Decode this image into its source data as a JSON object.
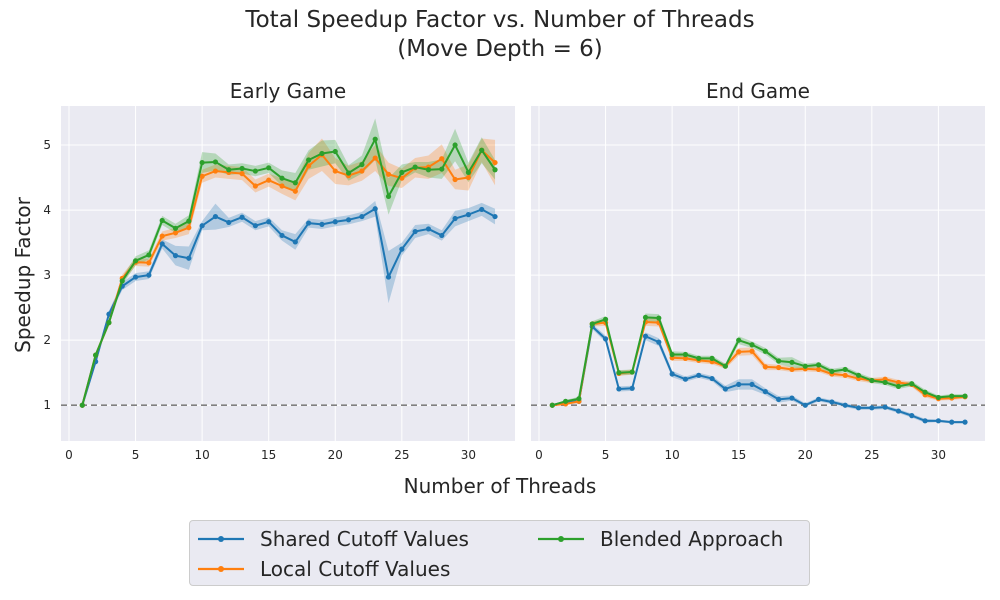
{
  "figure": {
    "title_line1": "Total Speedup Factor vs. Number of Threads",
    "title_line2": "(Move Depth = 6)",
    "xlabel": "Number of Threads",
    "ylabel": "Speedup Factor"
  },
  "legend": {
    "entries": [
      {
        "label": "Shared Cutoff Values",
        "color": "#1f77b4"
      },
      {
        "label": "Local Cutoff Values",
        "color": "#ff7f0e"
      },
      {
        "label": "Blended Approach",
        "color": "#2ca02c"
      }
    ]
  },
  "chart_data": [
    {
      "type": "line",
      "title": "Early Game",
      "xlim": [
        -0.6,
        33.5
      ],
      "ylim": [
        0.45,
        5.6
      ],
      "xticks": [
        0,
        5,
        10,
        15,
        20,
        25,
        30
      ],
      "yticks": [
        1,
        2,
        3,
        4,
        5
      ],
      "reference_line": {
        "y": 1,
        "style": "dashed",
        "color": "#808080"
      },
      "grid": true,
      "x": [
        1,
        2,
        3,
        4,
        5,
        6,
        7,
        8,
        9,
        10,
        11,
        12,
        13,
        14,
        15,
        16,
        17,
        18,
        19,
        20,
        21,
        22,
        23,
        24,
        25,
        26,
        27,
        28,
        29,
        30,
        31,
        32
      ],
      "series": [
        {
          "name": "Shared Cutoff Values",
          "color": "#1f77b4",
          "values": [
            1.0,
            1.67,
            2.4,
            2.83,
            2.97,
            3.0,
            3.48,
            3.3,
            3.26,
            3.76,
            3.9,
            3.81,
            3.89,
            3.76,
            3.82,
            3.61,
            3.51,
            3.8,
            3.78,
            3.82,
            3.85,
            3.9,
            4.02,
            2.97,
            3.4,
            3.67,
            3.71,
            3.61,
            3.87,
            3.93,
            4.01,
            3.9
          ],
          "band": [
            0,
            0.04,
            0.05,
            0.06,
            0.06,
            0.06,
            0.07,
            0.15,
            0.18,
            0.07,
            0.2,
            0.07,
            0.07,
            0.07,
            0.07,
            0.08,
            0.12,
            0.07,
            0.07,
            0.07,
            0.07,
            0.07,
            0.12,
            0.4,
            0.1,
            0.1,
            0.08,
            0.08,
            0.12,
            0.1,
            0.1,
            0.12
          ]
        },
        {
          "name": "Local Cutoff Values",
          "color": "#ff7f0e",
          "values": [
            1.0,
            1.77,
            2.27,
            2.95,
            3.2,
            3.19,
            3.6,
            3.65,
            3.73,
            4.52,
            4.6,
            4.58,
            4.56,
            4.37,
            4.46,
            4.37,
            4.29,
            4.68,
            4.85,
            4.6,
            4.53,
            4.6,
            4.8,
            4.55,
            4.49,
            4.65,
            4.66,
            4.79,
            4.47,
            4.5,
            4.92,
            4.73
          ],
          "band": [
            0,
            0.04,
            0.05,
            0.06,
            0.06,
            0.06,
            0.07,
            0.08,
            0.1,
            0.1,
            0.1,
            0.1,
            0.1,
            0.1,
            0.1,
            0.12,
            0.14,
            0.2,
            0.25,
            0.2,
            0.15,
            0.15,
            0.2,
            0.18,
            0.15,
            0.15,
            0.18,
            0.22,
            0.15,
            0.2,
            0.18,
            0.35
          ]
        },
        {
          "name": "Blended Approach",
          "color": "#2ca02c",
          "values": [
            1.0,
            1.77,
            2.27,
            2.91,
            3.22,
            3.31,
            3.84,
            3.72,
            3.83,
            4.73,
            4.74,
            4.62,
            4.64,
            4.6,
            4.65,
            4.49,
            4.42,
            4.77,
            4.87,
            4.9,
            4.57,
            4.7,
            5.09,
            4.21,
            4.58,
            4.66,
            4.62,
            4.63,
            5.0,
            4.58,
            4.92,
            4.62
          ],
          "band": [
            0,
            0.04,
            0.05,
            0.06,
            0.07,
            0.07,
            0.07,
            0.07,
            0.09,
            0.16,
            0.13,
            0.08,
            0.08,
            0.08,
            0.08,
            0.12,
            0.15,
            0.15,
            0.2,
            0.18,
            0.12,
            0.14,
            0.32,
            0.28,
            0.12,
            0.08,
            0.12,
            0.15,
            0.25,
            0.15,
            0.2,
            0.15
          ]
        }
      ]
    },
    {
      "type": "line",
      "title": "End Game",
      "xlim": [
        -0.6,
        33.5
      ],
      "ylim": [
        0.45,
        5.6
      ],
      "xticks": [
        0,
        5,
        10,
        15,
        20,
        25,
        30
      ],
      "yticks": [
        1,
        2,
        3,
        4,
        5
      ],
      "reference_line": {
        "y": 1,
        "style": "dashed",
        "color": "#808080"
      },
      "grid": true,
      "x": [
        1,
        2,
        3,
        4,
        5,
        6,
        7,
        8,
        9,
        10,
        11,
        12,
        13,
        14,
        15,
        16,
        17,
        18,
        19,
        20,
        21,
        22,
        23,
        24,
        25,
        26,
        27,
        28,
        29,
        30,
        31,
        32
      ],
      "series": [
        {
          "name": "Shared Cutoff Values",
          "color": "#1f77b4",
          "values": [
            1.0,
            1.05,
            1.06,
            2.21,
            2.02,
            1.25,
            1.26,
            2.06,
            1.97,
            1.48,
            1.4,
            1.46,
            1.41,
            1.25,
            1.32,
            1.32,
            1.21,
            1.09,
            1.11,
            1.0,
            1.09,
            1.05,
            1.0,
            0.96,
            0.96,
            0.97,
            0.91,
            0.84,
            0.76,
            0.76,
            0.74,
            0.74
          ],
          "band": [
            0,
            0.02,
            0.03,
            0.04,
            0.05,
            0.04,
            0.04,
            0.06,
            0.06,
            0.05,
            0.04,
            0.04,
            0.04,
            0.05,
            0.08,
            0.08,
            0.05,
            0.05,
            0.04,
            0.03,
            0.03,
            0.03,
            0.03,
            0.03,
            0.03,
            0.03,
            0.03,
            0.03,
            0.03,
            0.02,
            0.02,
            0.02
          ]
        },
        {
          "name": "Local Cutoff Values",
          "color": "#ff7f0e",
          "values": [
            1.0,
            1.02,
            1.06,
            2.25,
            2.27,
            1.49,
            1.51,
            2.28,
            2.27,
            1.73,
            1.72,
            1.69,
            1.67,
            1.6,
            1.82,
            1.83,
            1.59,
            1.58,
            1.55,
            1.56,
            1.55,
            1.48,
            1.46,
            1.41,
            1.38,
            1.4,
            1.35,
            1.32,
            1.16,
            1.1,
            1.11,
            1.13
          ],
          "band": [
            0,
            0.02,
            0.03,
            0.04,
            0.05,
            0.04,
            0.04,
            0.06,
            0.06,
            0.05,
            0.04,
            0.04,
            0.04,
            0.04,
            0.06,
            0.06,
            0.05,
            0.04,
            0.04,
            0.04,
            0.04,
            0.04,
            0.04,
            0.04,
            0.04,
            0.04,
            0.04,
            0.04,
            0.04,
            0.03,
            0.03,
            0.03
          ]
        },
        {
          "name": "Blended Approach",
          "color": "#2ca02c",
          "values": [
            1.0,
            1.06,
            1.1,
            2.25,
            2.32,
            1.5,
            1.51,
            2.35,
            2.34,
            1.78,
            1.78,
            1.72,
            1.72,
            1.6,
            2.0,
            1.93,
            1.83,
            1.68,
            1.66,
            1.6,
            1.62,
            1.52,
            1.55,
            1.46,
            1.38,
            1.35,
            1.29,
            1.33,
            1.2,
            1.12,
            1.14,
            1.14
          ],
          "band": [
            0,
            0.02,
            0.03,
            0.04,
            0.05,
            0.04,
            0.04,
            0.06,
            0.06,
            0.05,
            0.04,
            0.04,
            0.04,
            0.04,
            0.06,
            0.05,
            0.05,
            0.05,
            0.08,
            0.04,
            0.04,
            0.04,
            0.04,
            0.04,
            0.04,
            0.04,
            0.04,
            0.04,
            0.04,
            0.03,
            0.03,
            0.03
          ]
        }
      ]
    }
  ]
}
